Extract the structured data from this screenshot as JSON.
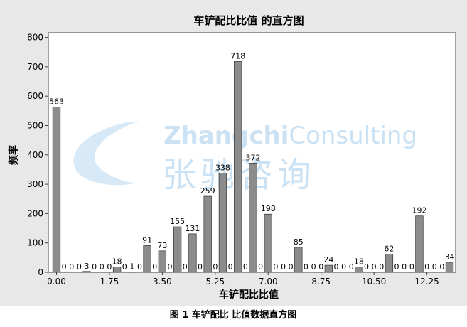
{
  "chart_data": {
    "type": "histogram",
    "title": "车铲配比比值 的直方图",
    "x_label": "车铲配比比值",
    "y_label": "频率",
    "bins": [
      -0.125,
      0.125,
      0.375,
      0.625,
      0.875,
      1.125,
      1.375,
      1.625,
      1.875,
      2.125,
      2.375,
      2.625,
      2.875,
      3.125,
      3.375,
      3.625,
      3.875,
      4.125,
      4.375,
      4.625,
      4.875,
      5.125,
      5.375,
      5.625,
      5.875,
      6.125,
      6.375,
      6.625,
      6.875,
      7.125,
      7.375,
      7.625,
      7.875,
      8.125,
      8.375,
      8.625,
      8.875,
      9.125,
      9.375,
      9.625,
      9.875,
      10.125,
      10.375,
      10.625,
      10.875,
      11.125,
      11.375,
      11.625,
      11.875,
      12.125,
      12.375,
      12.625,
      12.875,
      13.125
    ],
    "values": [
      563,
      0,
      0,
      0,
      3,
      0,
      0,
      0,
      18,
      0,
      1,
      0,
      91,
      0,
      73,
      0,
      155,
      0,
      131,
      0,
      259,
      0,
      338,
      0,
      718,
      0,
      372,
      0,
      198,
      0,
      0,
      0,
      85,
      0,
      0,
      0,
      24,
      0,
      0,
      0,
      18,
      0,
      0,
      0,
      62,
      0,
      0,
      0,
      192,
      0,
      0,
      0,
      34
    ],
    "color": "#8c8c8c",
    "xlim": [
      -0.27,
      13.2
    ],
    "ylim": [
      0,
      816
    ],
    "xticks": [
      {
        "value": 0,
        "label": "0.00"
      },
      1.75,
      {
        "value": 3.5,
        "label": "3.50"
      },
      5.25,
      {
        "value": 7,
        "label": "7.00"
      },
      8.75,
      {
        "value": 10.5,
        "label": "10.50"
      },
      12.25
    ],
    "yticks": [
      0,
      100,
      200,
      300,
      400,
      500,
      600,
      700,
      800
    ],
    "watermark": {
      "brand_bold": "Zhangchi",
      "brand": "Consulting",
      "brand_cn": "张驰咨询"
    }
  },
  "caption": "图 1    车铲配比 比值数据直方图"
}
